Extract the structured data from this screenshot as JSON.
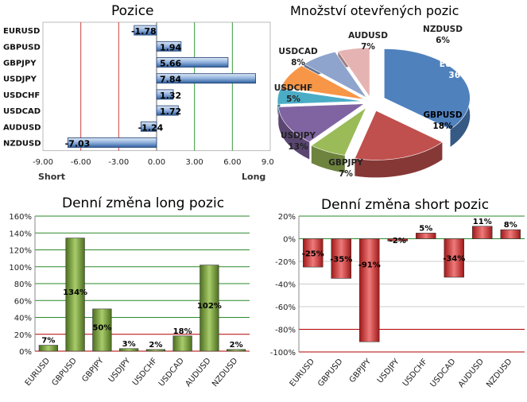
{
  "charts": {
    "positions": {
      "title": "Pozice",
      "axis_left_label": "Short",
      "axis_right_label": "Long"
    },
    "open_positions": {
      "title": "Množství otevřených pozic"
    },
    "daily_long": {
      "title": "Denní změna long pozic"
    },
    "daily_short": {
      "title": "Denní změna short pozic"
    }
  },
  "chart_data": [
    {
      "type": "bar",
      "orientation": "horizontal",
      "title": "Pozice",
      "categories": [
        "EURUSD",
        "GBPUSD",
        "GBPJPY",
        "USDJPY",
        "USDCHF",
        "USDCAD",
        "AUDUSD",
        "NZDUSD"
      ],
      "values": [
        -1.78,
        1.94,
        5.66,
        7.84,
        1.32,
        1.72,
        -1.24,
        -7.03
      ],
      "value_labels": [
        "-1.78",
        "1.94",
        "5.66",
        "7.84",
        "1.32",
        "1.72",
        "-1.24",
        "-7.03"
      ],
      "xlim": [
        -9,
        9
      ],
      "xticks": [
        "-9.00",
        "-6.00",
        "-3.00",
        "0.00",
        "3.00",
        "6.00",
        "9.00"
      ],
      "reference_lines": {
        "red": [
          -6,
          -3
        ],
        "green": [
          3,
          6
        ]
      },
      "colors": {
        "bar": "#4f7fbf"
      }
    },
    {
      "type": "pie",
      "title": "Množství otevřených pozic",
      "categories": [
        "EURUSD",
        "GBPUSD",
        "GBPJPY",
        "USDJPY",
        "USDCHF",
        "USDCAD",
        "AUDUSD",
        "NZDUSD"
      ],
      "values": [
        36,
        18,
        7,
        13,
        5,
        8,
        7,
        6
      ],
      "value_labels": [
        "36%",
        "18%",
        "7%",
        "13%",
        "5%",
        "8%",
        "7%",
        "6%"
      ],
      "colors": [
        "#4f81bd",
        "#c0504d",
        "#9bbb59",
        "#8064a2",
        "#4bacc6",
        "#f79646",
        "#8ea4cc",
        "#e6b3b3"
      ]
    },
    {
      "type": "bar",
      "title": "Denní změna long pozic",
      "categories": [
        "EURUSD",
        "GBPUSD",
        "GBPJPY",
        "USDJPY",
        "USDCHF",
        "USDCAD",
        "AUDUSD",
        "NZDUSD"
      ],
      "values": [
        7,
        134,
        50,
        3,
        2,
        18,
        102,
        2
      ],
      "value_labels": [
        "7%",
        "134%",
        "50%",
        "3%",
        "2%",
        "18%",
        "102%",
        "2%"
      ],
      "ylim": [
        0,
        160
      ],
      "yticks": [
        "0%",
        "20%",
        "40%",
        "60%",
        "80%",
        "100%",
        "120%",
        "140%",
        "160%"
      ],
      "grid_colors": {
        "0": "#b00000",
        "20": "#b00000",
        "default": "#2a8a2a"
      },
      "colors": {
        "bar": "#5a7f2a"
      }
    },
    {
      "type": "bar",
      "title": "Denní změna short pozic",
      "categories": [
        "EURUSD",
        "GBPUSD",
        "GBPJPY",
        "USDJPY",
        "USDCHF",
        "USDCAD",
        "AUDUSD",
        "NZDUSD"
      ],
      "values": [
        -25,
        -35,
        -91,
        -2,
        5,
        -34,
        11,
        8
      ],
      "value_labels": [
        "-25%",
        "-35%",
        "-91%",
        "-2%",
        "5%",
        "-34%",
        "11%",
        "8%"
      ],
      "ylim": [
        -100,
        20
      ],
      "yticks": [
        "-100%",
        "-80%",
        "-60%",
        "-40%",
        "-20%",
        "0%",
        "20%"
      ],
      "grid_colors": {
        "20": "#2a8a2a",
        "0": "#2a8a2a",
        "-80": "#b00000",
        "-100": "#b00000",
        "default": "#cccccc"
      },
      "colors": {
        "bar": "#c42a2a"
      }
    }
  ]
}
